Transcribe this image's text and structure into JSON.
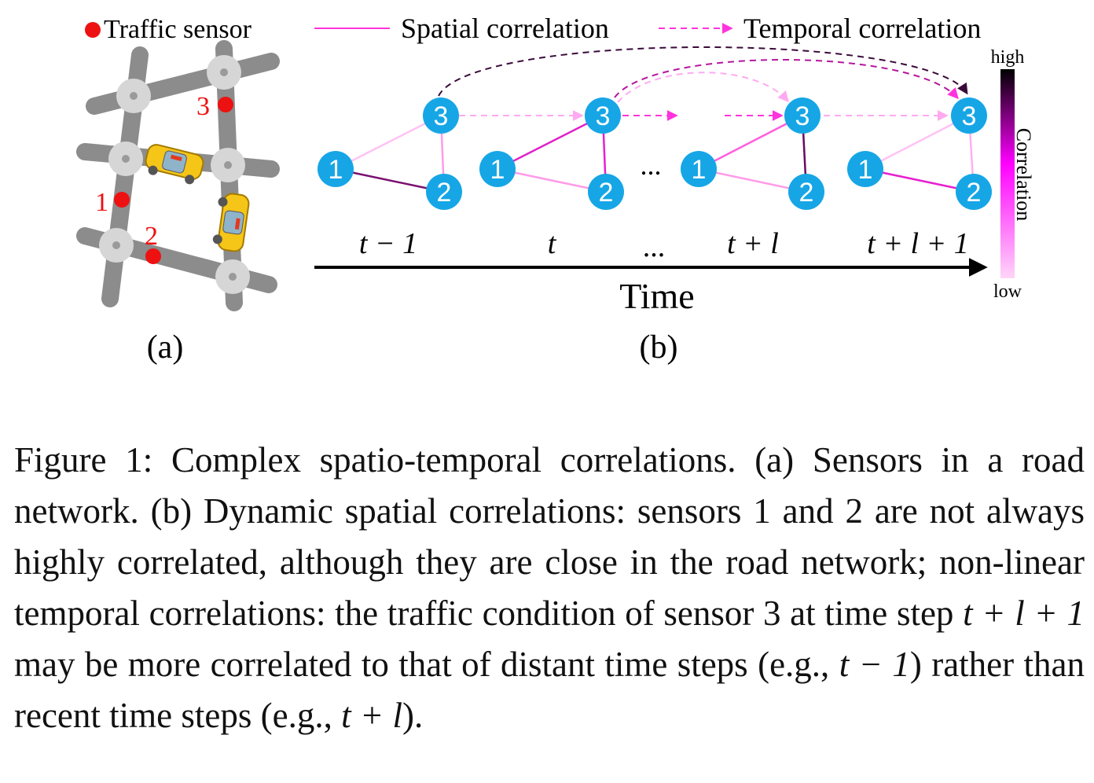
{
  "legend": {
    "sensor": "Traffic sensor",
    "spatial": "Spatial correlation",
    "temporal": "Temporal correlation"
  },
  "panel_a": {
    "label": "(a)",
    "sensors": [
      "1",
      "2",
      "3"
    ]
  },
  "panel_b": {
    "label": "(b)",
    "nodes": [
      "1",
      "2",
      "3"
    ],
    "ellipsis": "...",
    "time_steps": [
      "t − 1",
      "t",
      "...",
      "t + l",
      "t + l + 1"
    ],
    "axis_label": "Time",
    "colorbar": {
      "title": "Correlation",
      "high": "high",
      "low": "low"
    }
  },
  "colors": {
    "sensor_red": "#ee1111",
    "node_blue": "#16a6e6",
    "road_gray": "#8c8c8c",
    "car_yellow": "#f5c518",
    "spatial_magenta": "#ff33dd",
    "correlation_high": "#000000",
    "correlation_low": "#ffd6f8"
  },
  "caption": {
    "intro": "Figure 1: Complex spatio-temporal correlations. (a) Sensors in a road network. (b) Dynamic spatial correlations: sensors 1 and 2 are not always highly correlated, although they are close in the road network; non-linear temporal correlations: the traffic condition of sensor 3 at time step ",
    "expr1": "t + l + 1",
    "mid1": " may be more correlated to that of distant time steps (e.g., ",
    "expr2": "t − 1",
    "mid2": ") rather than recent time steps (e.g., ",
    "expr3": "t + l",
    "end": ")."
  }
}
